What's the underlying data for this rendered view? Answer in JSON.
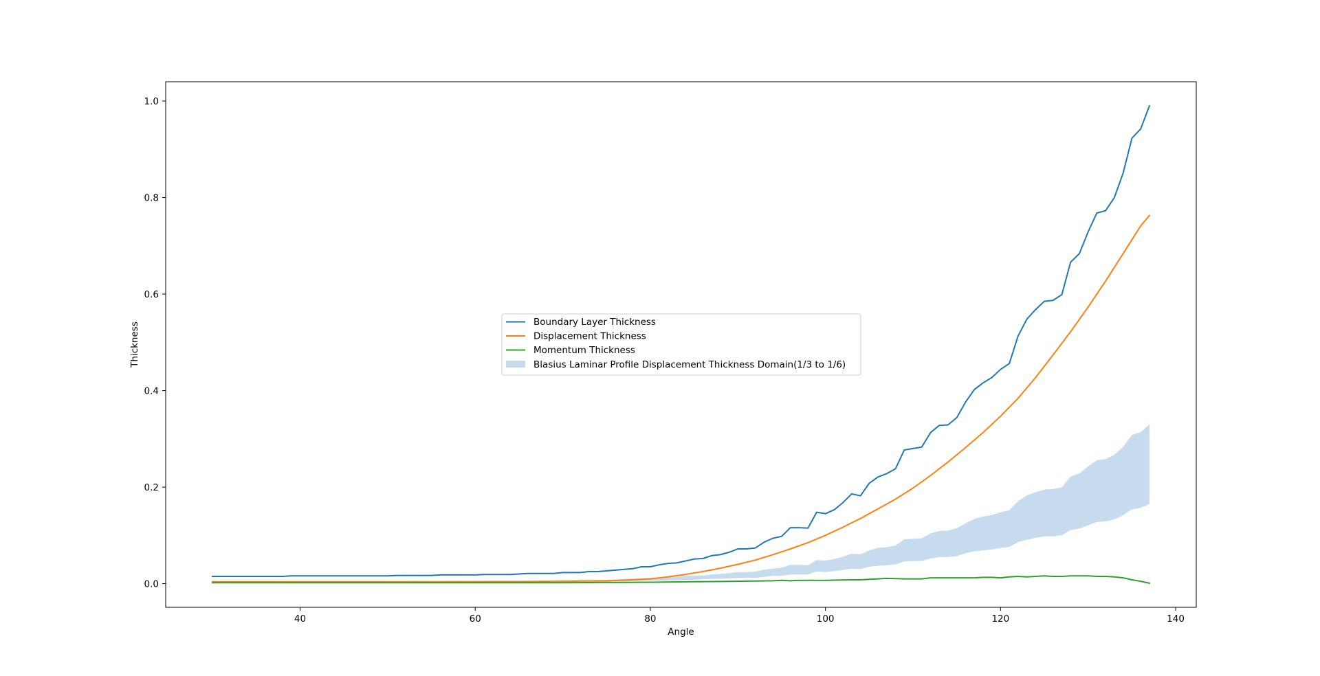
{
  "chart_data": {
    "type": "line",
    "title": "",
    "xlabel": "Angle",
    "ylabel": "Thickness",
    "xlim": [
      24.65,
      142.35
    ],
    "ylim": [
      -0.049,
      1.04
    ],
    "xticks": [
      40,
      60,
      80,
      100,
      120,
      140
    ],
    "yticks": [
      0.0,
      0.2,
      0.4,
      0.6,
      0.8,
      1.0
    ],
    "xtick_labels": [
      "40",
      "60",
      "80",
      "100",
      "120",
      "140"
    ],
    "ytick_labels": [
      "0.0",
      "0.2",
      "0.4",
      "0.6",
      "0.8",
      "1.0"
    ],
    "grid": false,
    "legend_position": "center",
    "colors": {
      "boundary": "#1f77b4",
      "displacement": "#ff7f0e",
      "momentum": "#2ca02c",
      "band": "#c6dbed"
    },
    "series": [
      {
        "name": "Boundary Layer Thickness",
        "x": [
          30,
          32,
          34,
          36,
          38,
          39,
          40,
          45,
          50,
          51,
          55,
          56,
          60,
          61,
          64,
          66,
          69,
          70,
          72,
          73,
          74,
          76,
          78,
          79,
          80,
          81,
          82,
          83,
          84,
          85,
          86,
          87,
          88,
          89,
          90,
          91,
          92,
          93,
          94,
          95,
          96,
          97,
          98,
          99,
          100,
          101,
          102,
          103,
          104,
          105,
          106,
          107,
          108,
          109,
          110,
          111,
          112,
          113,
          114,
          115,
          116,
          117,
          118,
          119,
          120,
          121,
          122,
          123,
          124,
          125,
          126,
          127,
          128,
          129,
          130,
          131,
          132,
          133,
          134,
          135,
          136,
          137
        ],
        "y": [
          0.015,
          0.015,
          0.015,
          0.015,
          0.015,
          0.016,
          0.016,
          0.016,
          0.016,
          0.017,
          0.017,
          0.018,
          0.018,
          0.019,
          0.019,
          0.021,
          0.021,
          0.023,
          0.023,
          0.025,
          0.025,
          0.028,
          0.031,
          0.035,
          0.035,
          0.039,
          0.042,
          0.043,
          0.047,
          0.051,
          0.052,
          0.058,
          0.06,
          0.065,
          0.072,
          0.072,
          0.074,
          0.086,
          0.094,
          0.098,
          0.116,
          0.116,
          0.115,
          0.148,
          0.145,
          0.153,
          0.168,
          0.186,
          0.182,
          0.208,
          0.221,
          0.228,
          0.238,
          0.277,
          0.28,
          0.283,
          0.313,
          0.328,
          0.329,
          0.344,
          0.376,
          0.402,
          0.416,
          0.427,
          0.444,
          0.456,
          0.513,
          0.548,
          0.568,
          0.585,
          0.587,
          0.599,
          0.666,
          0.684,
          0.729,
          0.768,
          0.773,
          0.8,
          0.851,
          0.923,
          0.942,
          0.99
        ]
      },
      {
        "name": "Displacement Thickness",
        "x": [
          30,
          40,
          50,
          60,
          65,
          70,
          75,
          78,
          80,
          82,
          84,
          86,
          88,
          90,
          92,
          94,
          96,
          98,
          100,
          102,
          104,
          106,
          108,
          110,
          112,
          114,
          116,
          118,
          120,
          122,
          124,
          126,
          128,
          130,
          132,
          134,
          136,
          137
        ],
        "y": [
          0.004,
          0.004,
          0.004,
          0.004,
          0.004,
          0.005,
          0.006,
          0.008,
          0.01,
          0.014,
          0.019,
          0.025,
          0.032,
          0.04,
          0.049,
          0.06,
          0.072,
          0.085,
          0.1,
          0.117,
          0.135,
          0.155,
          0.175,
          0.198,
          0.224,
          0.252,
          0.282,
          0.313,
          0.347,
          0.384,
          0.427,
          0.474,
          0.522,
          0.573,
          0.627,
          0.684,
          0.741,
          0.763
        ]
      },
      {
        "name": "Momentum Thickness",
        "x": [
          30,
          40,
          50,
          60,
          70,
          80,
          85,
          90,
          94,
          95,
          96,
          97,
          100,
          103,
          104,
          105,
          107,
          109,
          110,
          111,
          112,
          113,
          114,
          115,
          116,
          117,
          118,
          119,
          120,
          121,
          122,
          123,
          124,
          125,
          126,
          127,
          128,
          129,
          130,
          131,
          132,
          133,
          134,
          135,
          136,
          137
        ],
        "y": [
          0.002,
          0.002,
          0.002,
          0.002,
          0.002,
          0.003,
          0.004,
          0.005,
          0.006,
          0.007,
          0.006,
          0.007,
          0.007,
          0.008,
          0.008,
          0.009,
          0.011,
          0.01,
          0.01,
          0.01,
          0.012,
          0.012,
          0.012,
          0.012,
          0.012,
          0.012,
          0.013,
          0.013,
          0.012,
          0.014,
          0.015,
          0.014,
          0.015,
          0.016,
          0.015,
          0.015,
          0.016,
          0.016,
          0.016,
          0.015,
          0.015,
          0.014,
          0.012,
          0.008,
          0.005,
          0.001
        ]
      }
    ],
    "band": {
      "name": "Blasius Laminar Profile Displacement Thickness Domain(1/3 to 1/6)",
      "x": [
        30,
        40,
        50,
        60,
        70,
        75,
        80,
        81,
        82,
        83,
        84,
        85,
        86,
        87,
        88,
        89,
        90,
        91,
        92,
        93,
        94,
        95,
        96,
        97,
        98,
        99,
        100,
        101,
        102,
        103,
        104,
        105,
        106,
        107,
        108,
        109,
        110,
        111,
        112,
        113,
        114,
        115,
        116,
        117,
        118,
        119,
        120,
        121,
        122,
        123,
        124,
        125,
        126,
        127,
        128,
        129,
        130,
        131,
        132,
        133,
        134,
        135,
        136,
        137
      ],
      "upper": [
        0.005,
        0.005,
        0.005,
        0.006,
        0.007,
        0.008,
        0.012,
        0.013,
        0.014,
        0.014,
        0.016,
        0.017,
        0.017,
        0.019,
        0.02,
        0.022,
        0.024,
        0.024,
        0.025,
        0.029,
        0.031,
        0.033,
        0.039,
        0.039,
        0.038,
        0.049,
        0.048,
        0.051,
        0.056,
        0.062,
        0.061,
        0.069,
        0.074,
        0.076,
        0.079,
        0.092,
        0.093,
        0.094,
        0.104,
        0.109,
        0.11,
        0.115,
        0.125,
        0.134,
        0.139,
        0.142,
        0.148,
        0.152,
        0.171,
        0.183,
        0.189,
        0.195,
        0.196,
        0.2,
        0.222,
        0.228,
        0.243,
        0.256,
        0.258,
        0.267,
        0.284,
        0.308,
        0.314,
        0.33
      ],
      "lower": [
        0.002,
        0.002,
        0.002,
        0.003,
        0.003,
        0.004,
        0.006,
        0.006,
        0.007,
        0.007,
        0.008,
        0.008,
        0.009,
        0.01,
        0.01,
        0.011,
        0.012,
        0.012,
        0.012,
        0.014,
        0.016,
        0.016,
        0.019,
        0.019,
        0.019,
        0.025,
        0.024,
        0.026,
        0.028,
        0.031,
        0.03,
        0.035,
        0.037,
        0.038,
        0.04,
        0.046,
        0.047,
        0.047,
        0.052,
        0.055,
        0.055,
        0.057,
        0.063,
        0.067,
        0.069,
        0.071,
        0.074,
        0.076,
        0.086,
        0.091,
        0.095,
        0.098,
        0.098,
        0.1,
        0.111,
        0.114,
        0.121,
        0.128,
        0.129,
        0.133,
        0.142,
        0.154,
        0.157,
        0.165
      ]
    }
  }
}
